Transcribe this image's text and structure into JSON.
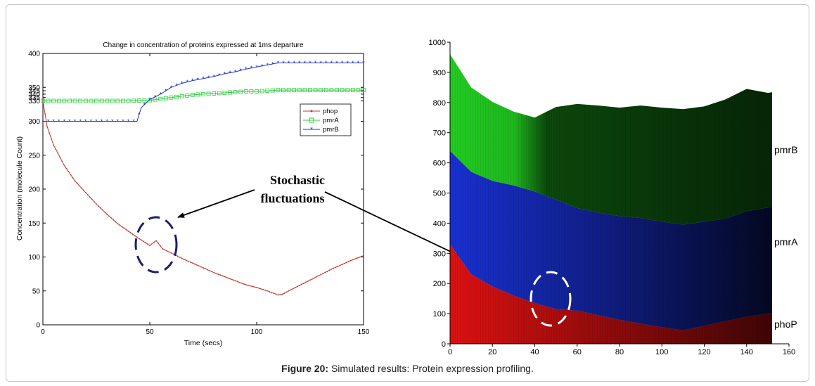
{
  "caption": {
    "label": "Figure 20:",
    "text": "Simulated results: Protein expression profiling."
  },
  "annotation": {
    "line1": "Stochastic",
    "line2": "fluctuations"
  },
  "chart_data": [
    {
      "type": "line",
      "title": "Change in concentration of proteins expressed at 1ms departure",
      "xlabel": "Time (secs)",
      "ylabel": "Concentration (molecule Count)",
      "xlim": [
        0,
        150
      ],
      "ylim": [
        0,
        400
      ],
      "xticks": [
        0,
        50,
        100,
        150
      ],
      "yticks": [
        0,
        50,
        100,
        150,
        200,
        250,
        300,
        330,
        335,
        340,
        345,
        350,
        400
      ],
      "legend": "right",
      "series": [
        {
          "name": "phop",
          "color": "#c0392b",
          "marker": "dot",
          "x": [
            0,
            2,
            5,
            10,
            15,
            20,
            25,
            30,
            35,
            40,
            45,
            50,
            53,
            56,
            60,
            65,
            70,
            75,
            80,
            85,
            90,
            95,
            100,
            105,
            110,
            112,
            115,
            120,
            125,
            130,
            135,
            140,
            145,
            150
          ],
          "y": [
            330,
            292,
            265,
            235,
            212,
            195,
            178,
            163,
            149,
            138,
            127,
            117,
            124,
            112,
            106,
            98,
            91,
            84,
            77,
            71,
            65,
            59,
            55,
            50,
            44,
            45,
            50,
            58,
            66,
            74,
            82,
            89,
            96,
            102
          ]
        },
        {
          "name": "pmrA",
          "color": "#2ecc40",
          "marker": "square",
          "x": [
            0,
            10,
            20,
            30,
            40,
            50,
            55,
            60,
            65,
            70,
            75,
            80,
            85,
            90,
            95,
            100,
            105,
            110,
            120,
            130,
            140,
            150
          ],
          "y": [
            330,
            330,
            330,
            330,
            330,
            331,
            333,
            335,
            337,
            339,
            340,
            341,
            342,
            343,
            344,
            344,
            345,
            346,
            346,
            346,
            346,
            346
          ]
        },
        {
          "name": "pmrB",
          "color": "#2233cc",
          "marker": "star",
          "x": [
            0,
            10,
            20,
            30,
            40,
            44,
            46,
            50,
            55,
            60,
            65,
            70,
            75,
            80,
            85,
            90,
            95,
            100,
            105,
            110,
            120,
            130,
            140,
            150
          ],
          "y": [
            300,
            300,
            300,
            300,
            300,
            300,
            320,
            332,
            340,
            350,
            356,
            360,
            363,
            366,
            370,
            373,
            377,
            380,
            383,
            386,
            386,
            386,
            386,
            386
          ]
        }
      ]
    },
    {
      "type": "area",
      "stacked": true,
      "xlim": [
        0,
        160
      ],
      "ylim": [
        0,
        1000
      ],
      "xticks": [
        0,
        20,
        40,
        60,
        80,
        100,
        120,
        140,
        160
      ],
      "yticks": [
        0,
        100,
        200,
        300,
        400,
        500,
        600,
        700,
        800,
        900,
        1000
      ],
      "series": [
        {
          "name": "phoP",
          "color": "#dd1111",
          "x": [
            0,
            10,
            20,
            30,
            40,
            50,
            60,
            70,
            80,
            90,
            100,
            110,
            120,
            130,
            140,
            150,
            152
          ],
          "y": [
            330,
            230,
            190,
            160,
            135,
            115,
            110,
            95,
            80,
            67,
            55,
            45,
            60,
            75,
            90,
            100,
            102
          ]
        },
        {
          "name": "pmrA",
          "color": "#1a33dd",
          "x": [
            0,
            10,
            20,
            30,
            40,
            50,
            60,
            70,
            80,
            90,
            100,
            110,
            120,
            130,
            140,
            150,
            152
          ],
          "y": [
            310,
            340,
            350,
            365,
            370,
            363,
            340,
            340,
            343,
            350,
            350,
            350,
            345,
            340,
            350,
            352,
            352
          ]
        },
        {
          "name": "pmrB",
          "color": "#22cc22",
          "x": [
            0,
            10,
            20,
            30,
            40,
            50,
            60,
            70,
            80,
            90,
            100,
            110,
            120,
            130,
            140,
            150,
            152
          ],
          "y": [
            320,
            280,
            262,
            245,
            245,
            307,
            345,
            355,
            360,
            373,
            378,
            383,
            382,
            395,
            405,
            380,
            380
          ]
        }
      ],
      "labels": [
        "pmrB",
        "pmrA",
        "phoP"
      ]
    }
  ]
}
